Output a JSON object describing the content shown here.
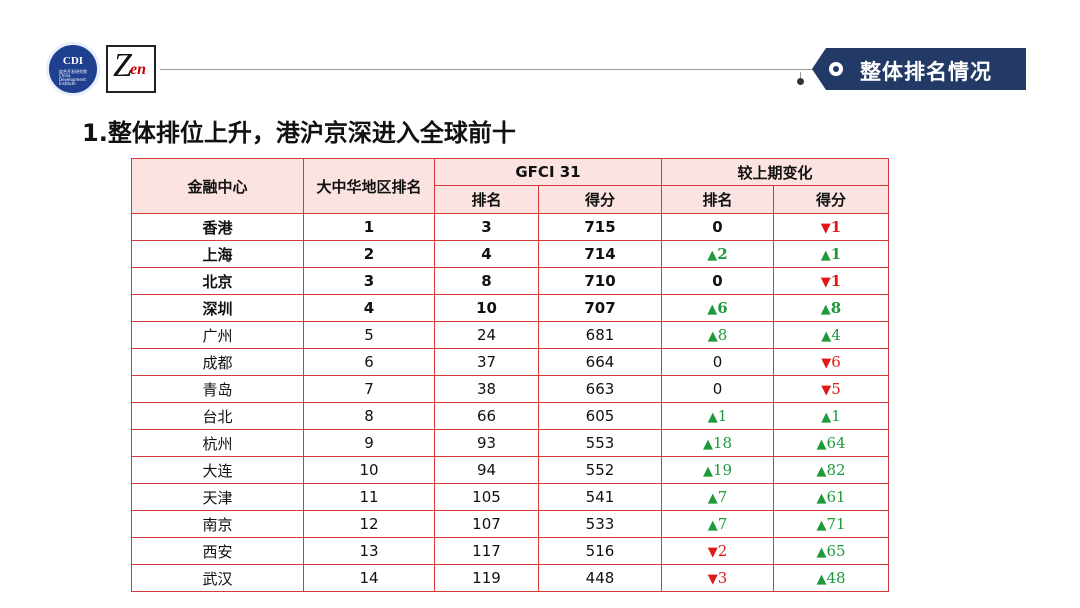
{
  "header": {
    "logo_cdi": {
      "text": "CDI",
      "subtext": "综合开发研究院 China Development Institute"
    },
    "logo_zen": {
      "main": "Z",
      "sub": "en"
    },
    "banner_label": "整体排名情况"
  },
  "title": "1.整体排位上升，港沪京深进入全球前十",
  "table": {
    "headers": {
      "center": "金融中心",
      "region_rank": "大中华地区排名",
      "gfci_group": "GFCI 31",
      "change_group": "较上期变化",
      "rank": "排名",
      "score": "得分",
      "change_rank": "排名",
      "change_score": "得分"
    },
    "rows": [
      {
        "city": "香港",
        "region_rank": "1",
        "rank": "3",
        "score": "715",
        "d_rank": {
          "dir": "none",
          "val": "0"
        },
        "d_score": {
          "dir": "down",
          "val": "1"
        },
        "bold": true
      },
      {
        "city": "上海",
        "region_rank": "2",
        "rank": "4",
        "score": "714",
        "d_rank": {
          "dir": "up",
          "val": "2"
        },
        "d_score": {
          "dir": "up",
          "val": "1"
        },
        "bold": true
      },
      {
        "city": "北京",
        "region_rank": "3",
        "rank": "8",
        "score": "710",
        "d_rank": {
          "dir": "none",
          "val": "0"
        },
        "d_score": {
          "dir": "down",
          "val": "1"
        },
        "bold": true
      },
      {
        "city": "深圳",
        "region_rank": "4",
        "rank": "10",
        "score": "707",
        "d_rank": {
          "dir": "up",
          "val": "6"
        },
        "d_score": {
          "dir": "up",
          "val": "8"
        },
        "bold": true
      },
      {
        "city": "广州",
        "region_rank": "5",
        "rank": "24",
        "score": "681",
        "d_rank": {
          "dir": "up",
          "val": "8"
        },
        "d_score": {
          "dir": "up",
          "val": "4"
        },
        "bold": false
      },
      {
        "city": "成都",
        "region_rank": "6",
        "rank": "37",
        "score": "664",
        "d_rank": {
          "dir": "none",
          "val": "0"
        },
        "d_score": {
          "dir": "down",
          "val": "6"
        },
        "bold": false
      },
      {
        "city": "青岛",
        "region_rank": "7",
        "rank": "38",
        "score": "663",
        "d_rank": {
          "dir": "none",
          "val": "0"
        },
        "d_score": {
          "dir": "down",
          "val": "5"
        },
        "bold": false
      },
      {
        "city": "台北",
        "region_rank": "8",
        "rank": "66",
        "score": "605",
        "d_rank": {
          "dir": "up",
          "val": "1"
        },
        "d_score": {
          "dir": "up",
          "val": "1"
        },
        "bold": false
      },
      {
        "city": "杭州",
        "region_rank": "9",
        "rank": "93",
        "score": "553",
        "d_rank": {
          "dir": "up",
          "val": "18"
        },
        "d_score": {
          "dir": "up",
          "val": "64"
        },
        "bold": false
      },
      {
        "city": "大连",
        "region_rank": "10",
        "rank": "94",
        "score": "552",
        "d_rank": {
          "dir": "up",
          "val": "19"
        },
        "d_score": {
          "dir": "up",
          "val": "82"
        },
        "bold": false
      },
      {
        "city": "天津",
        "region_rank": "11",
        "rank": "105",
        "score": "541",
        "d_rank": {
          "dir": "up",
          "val": "7"
        },
        "d_score": {
          "dir": "up",
          "val": "61"
        },
        "bold": false
      },
      {
        "city": "南京",
        "region_rank": "12",
        "rank": "107",
        "score": "533",
        "d_rank": {
          "dir": "up",
          "val": "7"
        },
        "d_score": {
          "dir": "up",
          "val": "71"
        },
        "bold": false
      },
      {
        "city": "西安",
        "region_rank": "13",
        "rank": "117",
        "score": "516",
        "d_rank": {
          "dir": "down",
          "val": "2"
        },
        "d_score": {
          "dir": "up",
          "val": "65"
        },
        "bold": false
      },
      {
        "city": "武汉",
        "region_rank": "14",
        "rank": "119",
        "score": "448",
        "d_rank": {
          "dir": "down",
          "val": "3"
        },
        "d_score": {
          "dir": "up",
          "val": "48"
        },
        "bold": false
      }
    ]
  },
  "colors": {
    "up": "#1e9a3a",
    "down": "#e01818",
    "header_bg": "#fbe3e1",
    "border": "#d73939",
    "banner": "#243a66"
  }
}
